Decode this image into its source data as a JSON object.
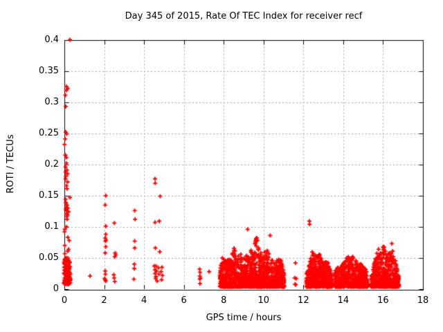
{
  "chart": {
    "title": "Day 345 of 2015, Rate Of TEC Index for receiver recf",
    "xlabel": "GPS time / hours",
    "ylabel": "ROTI / TECUs"
  },
  "colors": {
    "marker": "#ff0000",
    "axis": "#000000",
    "grid": "#a0a0a0",
    "background": "#ffffff"
  },
  "chart_data": {
    "type": "scatter",
    "marker": "plus",
    "marker_color": "#ff0000",
    "title": "Day 345 of 2015, Rate Of TEC Index for receiver recf",
    "xlabel": "GPS time / hours",
    "ylabel": "ROTI / TECUs",
    "xlim": [
      0,
      18
    ],
    "ylim": [
      0,
      0.4
    ],
    "x_ticks": [
      0,
      2,
      4,
      6,
      8,
      10,
      12,
      14,
      16,
      18
    ],
    "x_tick_labels": [
      "0",
      "2",
      "4",
      "6",
      "8",
      "10",
      "12",
      "14",
      "16",
      "18"
    ],
    "y_ticks": [
      0,
      0.05,
      0.1,
      0.15,
      0.2,
      0.25,
      0.3,
      0.35,
      0.4
    ],
    "y_tick_labels": [
      "0",
      "0.05",
      "0.1",
      "0.15",
      "0.2",
      "0.25",
      "0.3",
      "0.35",
      "0.4"
    ],
    "grid": true,
    "grid_style": "dotted",
    "points": [
      [
        0.28,
        0.4
      ],
      [
        0.1,
        0.325
      ],
      [
        0.17,
        0.322
      ],
      [
        0.1,
        0.319
      ],
      [
        0.05,
        0.311
      ],
      [
        0.07,
        0.293
      ],
      [
        0.07,
        0.252
      ],
      [
        0.11,
        0.249
      ],
      [
        0.04,
        0.241
      ],
      [
        0.01,
        0.232
      ],
      [
        0.05,
        0.215
      ],
      [
        0.1,
        0.211
      ],
      [
        0.1,
        0.202
      ],
      [
        0.06,
        0.196
      ],
      [
        0.13,
        0.191
      ],
      [
        0.06,
        0.188
      ],
      [
        0.16,
        0.185
      ],
      [
        0.08,
        0.181
      ],
      [
        0.06,
        0.177
      ],
      [
        0.16,
        0.172
      ],
      [
        0.1,
        0.166
      ],
      [
        0.14,
        0.161
      ],
      [
        0.28,
        0.147
      ],
      [
        0.06,
        0.144
      ],
      [
        0.08,
        0.139
      ],
      [
        0.14,
        0.135
      ],
      [
        0.1,
        0.132
      ],
      [
        0.18,
        0.13
      ],
      [
        0.07,
        0.128
      ],
      [
        0.13,
        0.126
      ],
      [
        0.21,
        0.124
      ],
      [
        0.1,
        0.121
      ],
      [
        0.16,
        0.119
      ],
      [
        0.12,
        0.116
      ],
      [
        0.14,
        0.112
      ],
      [
        0.1,
        0.1
      ],
      [
        0.02,
        0.096
      ],
      [
        0.01,
        0.092
      ],
      [
        0.17,
        0.083
      ],
      [
        0.24,
        0.078
      ],
      [
        0.02,
        0.07
      ],
      [
        0.21,
        0.064
      ],
      [
        0.17,
        0.061
      ],
      [
        0.02,
        0.057
      ],
      [
        0.05,
        0.049
      ],
      [
        1.29,
        0.021
      ],
      [
        2.08,
        0.15
      ],
      [
        2.05,
        0.135
      ],
      [
        2.08,
        0.101
      ],
      [
        2.08,
        0.088
      ],
      [
        2.05,
        0.082
      ],
      [
        2.09,
        0.079
      ],
      [
        2.06,
        0.077
      ],
      [
        2.08,
        0.068
      ],
      [
        2.05,
        0.058
      ],
      [
        2.05,
        0.029
      ],
      [
        2.06,
        0.024
      ],
      [
        2.02,
        0.017
      ],
      [
        2.05,
        0.015
      ],
      [
        2.08,
        0.013
      ],
      [
        2.51,
        0.106
      ],
      [
        2.55,
        0.058
      ],
      [
        2.58,
        0.055
      ],
      [
        2.53,
        0.052
      ],
      [
        2.48,
        0.023
      ],
      [
        2.5,
        0.018
      ],
      [
        2.53,
        0.012
      ],
      [
        3.53,
        0.126
      ],
      [
        3.55,
        0.112
      ],
      [
        3.53,
        0.077
      ],
      [
        3.53,
        0.066
      ],
      [
        3.51,
        0.04
      ],
      [
        3.51,
        0.033
      ],
      [
        3.49,
        0.016
      ],
      [
        4.55,
        0.177
      ],
      [
        4.56,
        0.17
      ],
      [
        4.81,
        0.149
      ],
      [
        4.76,
        0.109
      ],
      [
        4.55,
        0.107
      ],
      [
        4.57,
        0.066
      ],
      [
        4.79,
        0.06
      ],
      [
        4.51,
        0.037
      ],
      [
        4.6,
        0.037
      ],
      [
        4.72,
        0.034
      ],
      [
        4.9,
        0.035
      ],
      [
        4.55,
        0.031
      ],
      [
        4.62,
        0.029
      ],
      [
        4.85,
        0.028
      ],
      [
        4.55,
        0.025
      ],
      [
        4.74,
        0.024
      ],
      [
        4.92,
        0.022
      ],
      [
        4.6,
        0.02
      ],
      [
        4.58,
        0.017
      ],
      [
        4.88,
        0.015
      ],
      [
        4.66,
        0.013
      ],
      [
        6.79,
        0.032
      ],
      [
        6.81,
        0.027
      ],
      [
        6.8,
        0.021
      ],
      [
        6.83,
        0.018
      ],
      [
        6.8,
        0.016
      ],
      [
        6.81,
        0.009
      ],
      [
        7.27,
        0.028
      ],
      [
        9.2,
        0.096
      ],
      [
        10.33,
        0.086
      ],
      [
        11.6,
        0.042
      ],
      [
        11.56,
        0.018
      ],
      [
        11.64,
        0.017
      ],
      [
        11.58,
        0.008
      ],
      [
        11.62,
        0.007
      ],
      [
        12.3,
        0.109
      ],
      [
        12.31,
        0.104
      ],
      [
        16.44,
        0.073
      ],
      [
        16.48,
        0.061
      ],
      [
        16.51,
        0.052
      ],
      [
        16.46,
        0.047
      ]
    ],
    "dense_clusters": [
      {
        "name": "start-of-day-burst",
        "seed": 11,
        "n": 130,
        "x_range": [
          -0.02,
          0.3
        ],
        "y_base": 0.008,
        "bias": 1.5,
        "envelope": [
          [
            -0.02,
            0.05
          ],
          [
            0.12,
            0.055
          ],
          [
            0.3,
            0.042
          ]
        ]
      },
      {
        "name": "morning-cluster",
        "seed": 42,
        "n": 1050,
        "x_range": [
          7.8,
          11.05
        ],
        "y_base": 0.004,
        "bias": 2.3,
        "envelope": [
          [
            7.8,
            0.03
          ],
          [
            7.95,
            0.062
          ],
          [
            8.05,
            0.045
          ],
          [
            8.3,
            0.048
          ],
          [
            8.55,
            0.069
          ],
          [
            8.7,
            0.05
          ],
          [
            8.85,
            0.065
          ],
          [
            9.0,
            0.048
          ],
          [
            9.3,
            0.06
          ],
          [
            9.5,
            0.07
          ],
          [
            9.65,
            0.086
          ],
          [
            9.8,
            0.06
          ],
          [
            10.0,
            0.055
          ],
          [
            10.15,
            0.07
          ],
          [
            10.35,
            0.05
          ],
          [
            10.55,
            0.042
          ],
          [
            10.75,
            0.055
          ],
          [
            10.9,
            0.045
          ],
          [
            11.05,
            0.025
          ]
        ]
      },
      {
        "name": "midday-cluster",
        "seed": 7,
        "n": 430,
        "x_range": [
          12.15,
          13.45
        ],
        "y_base": 0.004,
        "bias": 2.2,
        "envelope": [
          [
            12.15,
            0.025
          ],
          [
            12.3,
            0.04
          ],
          [
            12.45,
            0.063
          ],
          [
            12.6,
            0.052
          ],
          [
            12.8,
            0.06
          ],
          [
            13.0,
            0.04
          ],
          [
            13.2,
            0.048
          ],
          [
            13.45,
            0.022
          ]
        ]
      },
      {
        "name": "afternoon-cluster",
        "seed": 19,
        "n": 520,
        "x_range": [
          13.55,
          15.25
        ],
        "y_base": 0.004,
        "bias": 2.2,
        "envelope": [
          [
            13.55,
            0.028
          ],
          [
            13.8,
            0.038
          ],
          [
            14.1,
            0.048
          ],
          [
            14.35,
            0.057
          ],
          [
            14.55,
            0.05
          ],
          [
            14.8,
            0.04
          ],
          [
            15.0,
            0.042
          ],
          [
            15.15,
            0.03
          ],
          [
            15.25,
            0.02
          ]
        ]
      },
      {
        "name": "evening-cluster",
        "seed": 23,
        "n": 470,
        "x_range": [
          15.4,
          16.8
        ],
        "y_base": 0.004,
        "bias": 2.2,
        "envelope": [
          [
            15.4,
            0.02
          ],
          [
            15.55,
            0.04
          ],
          [
            15.75,
            0.07
          ],
          [
            15.9,
            0.055
          ],
          [
            16.05,
            0.077
          ],
          [
            16.2,
            0.055
          ],
          [
            16.35,
            0.06
          ],
          [
            16.5,
            0.055
          ],
          [
            16.65,
            0.045
          ],
          [
            16.8,
            0.018
          ]
        ]
      }
    ]
  }
}
